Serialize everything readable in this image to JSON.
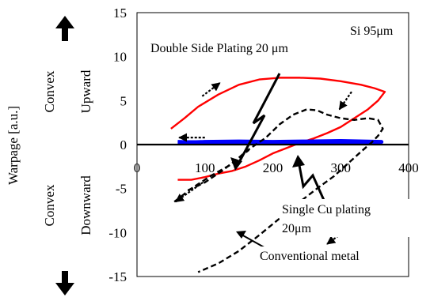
{
  "chart_data": {
    "type": "line",
    "title": "",
    "xlabel": "",
    "ylabel": "Warpage [a.u.]",
    "xlim": [
      0,
      400
    ],
    "ylim": [
      -15,
      15
    ],
    "x_ticks": [
      "0",
      "100",
      "200",
      "300",
      "400"
    ],
    "y_ticks": [
      "15",
      "10",
      "5",
      "0",
      "-5",
      "-10",
      "-15"
    ],
    "direction_labels": {
      "upward": [
        "Convex",
        "Upward"
      ],
      "downward": [
        "Convex",
        "Downward"
      ]
    },
    "annotations": {
      "si_label": "Si 95μm",
      "double_side": "Double Side Plating 20 μm",
      "single_cu_line1": "Single Cu plating",
      "single_cu_line2": "20μm",
      "conventional": "Conventional metal"
    },
    "colors": {
      "double_side": "#ff0000",
      "single_cu": "#0000ff",
      "conventional": "#000000"
    },
    "series": [
      {
        "key": "double_side",
        "style": "solid",
        "values": [
          [
            50,
            1.8
          ],
          [
            70,
            3.0
          ],
          [
            90,
            4.3
          ],
          [
            120,
            5.7
          ],
          [
            150,
            6.8
          ],
          [
            180,
            7.4
          ],
          [
            210,
            7.6
          ],
          [
            240,
            7.6
          ],
          [
            270,
            7.5
          ],
          [
            300,
            7.2
          ],
          [
            330,
            6.8
          ],
          [
            350,
            6.4
          ],
          [
            365,
            6.0
          ],
          [
            355,
            5.0
          ],
          [
            340,
            4.0
          ],
          [
            320,
            3.0
          ],
          [
            300,
            2.0
          ],
          [
            280,
            1.3
          ],
          [
            260,
            0.7
          ],
          [
            240,
            0.2
          ],
          [
            220,
            -0.4
          ],
          [
            200,
            -1.0
          ],
          [
            180,
            -1.8
          ],
          [
            160,
            -2.5
          ],
          [
            140,
            -3.0
          ],
          [
            120,
            -3.3
          ],
          [
            100,
            -3.7
          ],
          [
            80,
            -4.0
          ],
          [
            60,
            -4.0
          ]
        ]
      },
      {
        "key": "single_cu",
        "style": "solid",
        "values": [
          [
            60,
            0.2
          ],
          [
            100,
            0.3
          ],
          [
            150,
            0.35
          ],
          [
            200,
            0.3
          ],
          [
            250,
            0.35
          ],
          [
            300,
            0.4
          ],
          [
            360,
            0.3
          ],
          [
            300,
            0.2
          ],
          [
            250,
            0.25
          ],
          [
            200,
            0.2
          ],
          [
            150,
            0.25
          ],
          [
            100,
            0.2
          ],
          [
            60,
            0.3
          ]
        ]
      },
      {
        "key": "conventional_main",
        "style": "dashed",
        "values": [
          [
            55,
            -6.5
          ],
          [
            80,
            -5.0
          ],
          [
            110,
            -3.5
          ],
          [
            140,
            -2.2
          ],
          [
            160,
            -0.8
          ],
          [
            190,
            0.8
          ],
          [
            210,
            2.3
          ],
          [
            230,
            3.4
          ],
          [
            250,
            4.0
          ],
          [
            265,
            3.9
          ],
          [
            280,
            3.4
          ],
          [
            300,
            3.0
          ],
          [
            320,
            2.8
          ],
          [
            340,
            3.0
          ],
          [
            355,
            2.8
          ],
          [
            362,
            1.8
          ],
          [
            355,
            1.0
          ],
          [
            345,
            0.2
          ],
          [
            330,
            -0.8
          ],
          [
            310,
            -2.2
          ],
          [
            290,
            -3.6
          ],
          [
            265,
            -5.0
          ],
          [
            240,
            -6.5
          ],
          [
            210,
            -8.4
          ],
          [
            180,
            -10.3
          ],
          [
            150,
            -12.1
          ],
          [
            120,
            -13.5
          ],
          [
            90,
            -14.5
          ]
        ]
      },
      {
        "key": "conventional_extra",
        "style": "dashed",
        "values": [
          [
            75,
            -5.2
          ],
          [
            100,
            -4.3
          ],
          [
            125,
            -3.0
          ],
          [
            150,
            -1.5
          ],
          [
            165,
            -0.6
          ]
        ]
      }
    ],
    "direction_arrows": [
      [
        [
          96,
          5.5
        ],
        [
          122,
          7.0
        ]
      ],
      [
        [
          100,
          0.8
        ],
        [
          62,
          0.8
        ]
      ],
      [
        [
          97,
          -4.3
        ],
        [
          57,
          -6.5
        ]
      ],
      [
        [
          316,
          6.0
        ],
        [
          298,
          4.0
        ]
      ],
      [
        [
          330,
          -8.5
        ],
        [
          280,
          -11.3
        ]
      ]
    ]
  }
}
